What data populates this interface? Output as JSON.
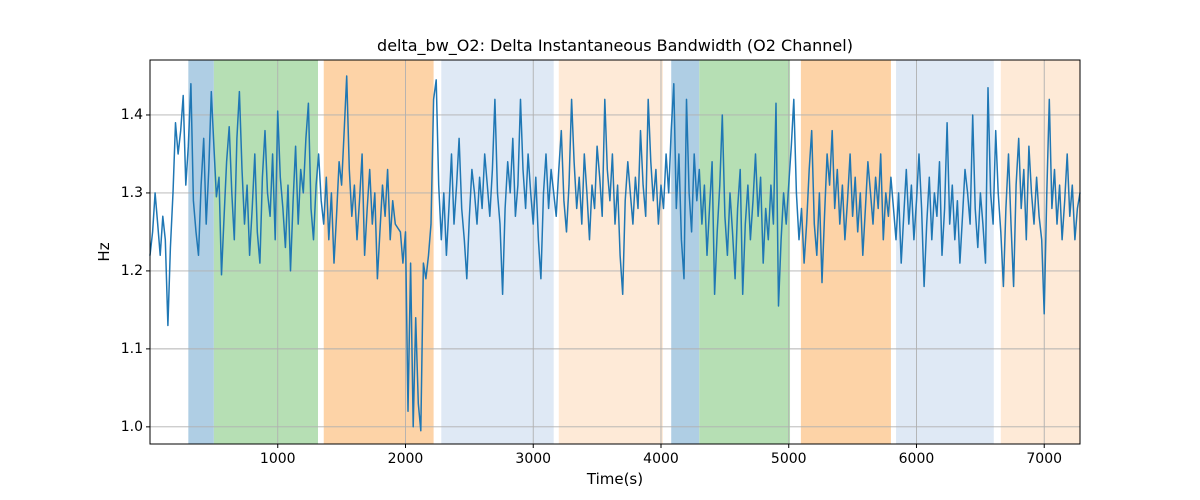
{
  "figure": {
    "title": "delta_bw_O2: Delta Instantaneous Bandwidth (O2 Channel)",
    "xlabel": "Time(s)",
    "ylabel": "Hz",
    "background_color": "#ffffff",
    "grid_color": "#b0b0b0",
    "spine_color": "#000000",
    "tick_color": "#000000"
  },
  "chart_data": {
    "type": "line",
    "title": "delta_bw_O2: Delta Instantaneous Bandwidth (O2 Channel)",
    "xlabel": "Time(s)",
    "ylabel": "Hz",
    "xlim": [
      0,
      7280
    ],
    "ylim": [
      0.978,
      1.4705
    ],
    "xticks": [
      1000,
      2000,
      3000,
      4000,
      5000,
      6000,
      7000
    ],
    "yticks": [
      1.0,
      1.1,
      1.2,
      1.3,
      1.4
    ],
    "grid": true,
    "legend": "none",
    "line_color": "#1f77b4",
    "series": [
      {
        "name": "delta_bw_O2",
        "t_start": 0,
        "t_step": 20,
        "values": [
          1.22,
          1.25,
          1.3,
          1.26,
          1.22,
          1.27,
          1.24,
          1.13,
          1.23,
          1.3,
          1.39,
          1.35,
          1.38,
          1.425,
          1.31,
          1.36,
          1.44,
          1.29,
          1.25,
          1.22,
          1.31,
          1.37,
          1.26,
          1.33,
          1.43,
          1.36,
          1.295,
          1.32,
          1.195,
          1.27,
          1.34,
          1.385,
          1.3,
          1.24,
          1.37,
          1.43,
          1.33,
          1.26,
          1.31,
          1.22,
          1.28,
          1.35,
          1.25,
          1.21,
          1.32,
          1.38,
          1.3,
          1.27,
          1.35,
          1.24,
          1.405,
          1.32,
          1.28,
          1.23,
          1.31,
          1.2,
          1.29,
          1.36,
          1.26,
          1.33,
          1.3,
          1.37,
          1.415,
          1.28,
          1.24,
          1.31,
          1.35,
          1.29,
          1.26,
          1.32,
          1.24,
          1.3,
          1.21,
          1.27,
          1.34,
          1.31,
          1.38,
          1.45,
          1.33,
          1.27,
          1.31,
          1.24,
          1.29,
          1.35,
          1.22,
          1.28,
          1.33,
          1.26,
          1.3,
          1.19,
          1.25,
          1.31,
          1.27,
          1.33,
          1.24,
          1.29,
          1.26,
          1.255,
          1.25,
          1.21,
          1.25,
          1.02,
          1.21,
          1.0,
          1.14,
          1.03,
          0.995,
          1.21,
          1.19,
          1.22,
          1.26,
          1.42,
          1.445,
          1.31,
          1.24,
          1.3,
          1.22,
          1.28,
          1.35,
          1.26,
          1.31,
          1.37,
          1.28,
          1.24,
          1.19,
          1.27,
          1.33,
          1.3,
          1.26,
          1.32,
          1.28,
          1.35,
          1.31,
          1.27,
          1.33,
          1.42,
          1.3,
          1.26,
          1.17,
          1.28,
          1.34,
          1.3,
          1.37,
          1.27,
          1.31,
          1.42,
          1.33,
          1.28,
          1.35,
          1.3,
          1.26,
          1.32,
          1.24,
          1.19,
          1.3,
          1.35,
          1.28,
          1.33,
          1.3,
          1.27,
          1.33,
          1.38,
          1.29,
          1.25,
          1.31,
          1.42,
          1.34,
          1.28,
          1.32,
          1.26,
          1.35,
          1.3,
          1.24,
          1.31,
          1.28,
          1.36,
          1.32,
          1.27,
          1.42,
          1.33,
          1.29,
          1.35,
          1.26,
          1.31,
          1.22,
          1.17,
          1.29,
          1.34,
          1.3,
          1.26,
          1.32,
          1.28,
          1.38,
          1.31,
          1.27,
          1.42,
          1.34,
          1.29,
          1.33,
          1.26,
          1.31,
          1.28,
          1.35,
          1.3,
          1.38,
          1.44,
          1.28,
          1.35,
          1.24,
          1.19,
          1.42,
          1.3,
          1.25,
          1.35,
          1.29,
          1.33,
          1.26,
          1.31,
          1.22,
          1.28,
          1.34,
          1.17,
          1.25,
          1.31,
          1.4,
          1.27,
          1.22,
          1.3,
          1.25,
          1.19,
          1.28,
          1.33,
          1.17,
          1.26,
          1.31,
          1.24,
          1.29,
          1.35,
          1.27,
          1.32,
          1.21,
          1.28,
          1.24,
          1.31,
          1.26,
          1.415,
          1.155,
          1.24,
          1.3,
          1.26,
          1.31,
          1.36,
          1.42,
          1.3,
          1.24,
          1.28,
          1.21,
          1.26,
          1.33,
          1.38,
          1.26,
          1.22,
          1.3,
          1.185,
          1.27,
          1.35,
          1.31,
          1.38,
          1.28,
          1.33,
          1.26,
          1.31,
          1.24,
          1.29,
          1.35,
          1.27,
          1.32,
          1.25,
          1.3,
          1.22,
          1.28,
          1.34,
          1.3,
          1.26,
          1.32,
          1.28,
          1.35,
          1.24,
          1.3,
          1.27,
          1.32,
          1.28,
          1.24,
          1.3,
          1.21,
          1.27,
          1.33,
          1.26,
          1.31,
          1.24,
          1.29,
          1.35,
          1.28,
          1.18,
          1.26,
          1.32,
          1.24,
          1.3,
          1.27,
          1.34,
          1.22,
          1.28,
          1.39,
          1.26,
          1.31,
          1.24,
          1.29,
          1.21,
          1.27,
          1.33,
          1.3,
          1.26,
          1.4,
          1.28,
          1.23,
          1.3,
          1.26,
          1.21,
          1.435,
          1.3,
          1.26,
          1.38,
          1.3,
          1.25,
          1.18,
          1.28,
          1.35,
          1.26,
          1.18,
          1.31,
          1.37,
          1.28,
          1.33,
          1.24,
          1.36,
          1.3,
          1.26,
          1.32,
          1.27,
          1.24,
          1.145,
          1.3,
          1.42,
          1.28,
          1.33,
          1.26,
          1.31,
          1.24,
          1.29,
          1.35,
          1.27,
          1.31,
          1.24,
          1.28,
          1.3
        ]
      }
    ],
    "bands": [
      {
        "label": "stage-band-blue-1",
        "start": 300,
        "end": 500,
        "color": "#afcee4"
      },
      {
        "label": "stage-band-green-1",
        "start": 500,
        "end": 1315,
        "color": "#b6dfb4"
      },
      {
        "label": "stage-band-orange-1",
        "start": 1360,
        "end": 2220,
        "color": "#fdd3a7"
      },
      {
        "label": "stage-band-pale-blue-1",
        "start": 2280,
        "end": 3160,
        "color": "#dfe9f5"
      },
      {
        "label": "stage-band-pale-orange-1",
        "start": 3200,
        "end": 4015,
        "color": "#feead7"
      },
      {
        "label": "stage-band-blue-2",
        "start": 4080,
        "end": 4300,
        "color": "#afcee4"
      },
      {
        "label": "stage-band-green-2",
        "start": 4300,
        "end": 5010,
        "color": "#b6dfb4"
      },
      {
        "label": "stage-band-orange-2",
        "start": 5095,
        "end": 5800,
        "color": "#fdd3a7"
      },
      {
        "label": "stage-band-pale-blue-2",
        "start": 5840,
        "end": 6605,
        "color": "#dfe9f5"
      },
      {
        "label": "stage-band-pale-orange-2",
        "start": 6660,
        "end": 7280,
        "color": "#feead7"
      }
    ]
  }
}
